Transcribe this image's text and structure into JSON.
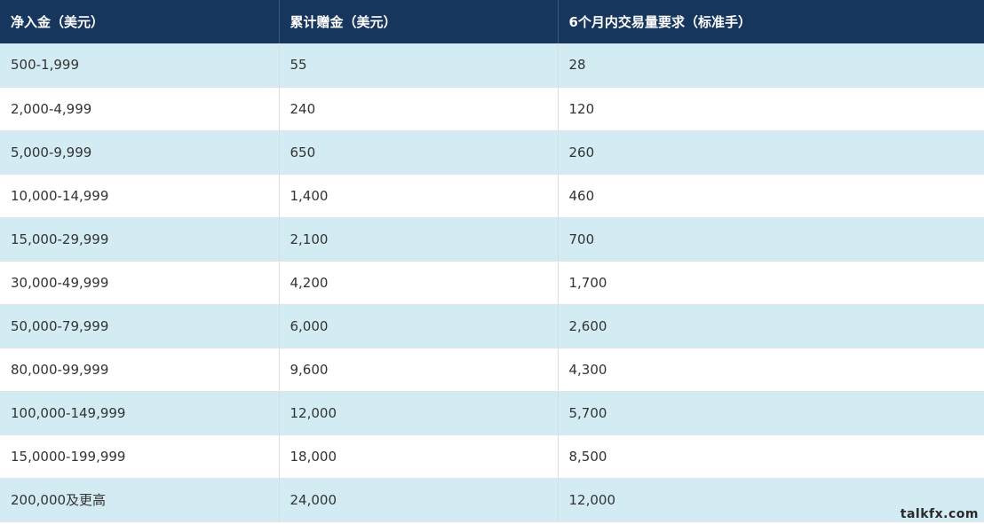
{
  "table": {
    "headers": [
      "净入金（美元）",
      "累计赠金（美元）",
      "6个月内交易量要求（标准手）"
    ],
    "rows": [
      [
        "500-1,999",
        "55",
        "28"
      ],
      [
        "2,000-4,999",
        "240",
        "120"
      ],
      [
        "5,000-9,999",
        "650",
        "260"
      ],
      [
        "10,000-14,999",
        "1,400",
        "460"
      ],
      [
        "15,000-29,999",
        "2,100",
        "700"
      ],
      [
        "30,000-49,999",
        "4,200",
        "1,700"
      ],
      [
        "50,000-79,999",
        "6,000",
        "2,600"
      ],
      [
        "80,000-99,999",
        "9,600",
        "4,300"
      ],
      [
        "100,000-149,999",
        "12,000",
        "5,700"
      ],
      [
        "15,0000-199,999",
        "18,000",
        "8,500"
      ],
      [
        "200,000及更高",
        "24,000",
        "12,000"
      ]
    ]
  },
  "watermark": "talkfx.com",
  "colors": {
    "header_bg": "#17365d",
    "header_text": "#ffffff",
    "stripe_bg": "#d3ecf3",
    "row_bg": "#ffffff"
  }
}
